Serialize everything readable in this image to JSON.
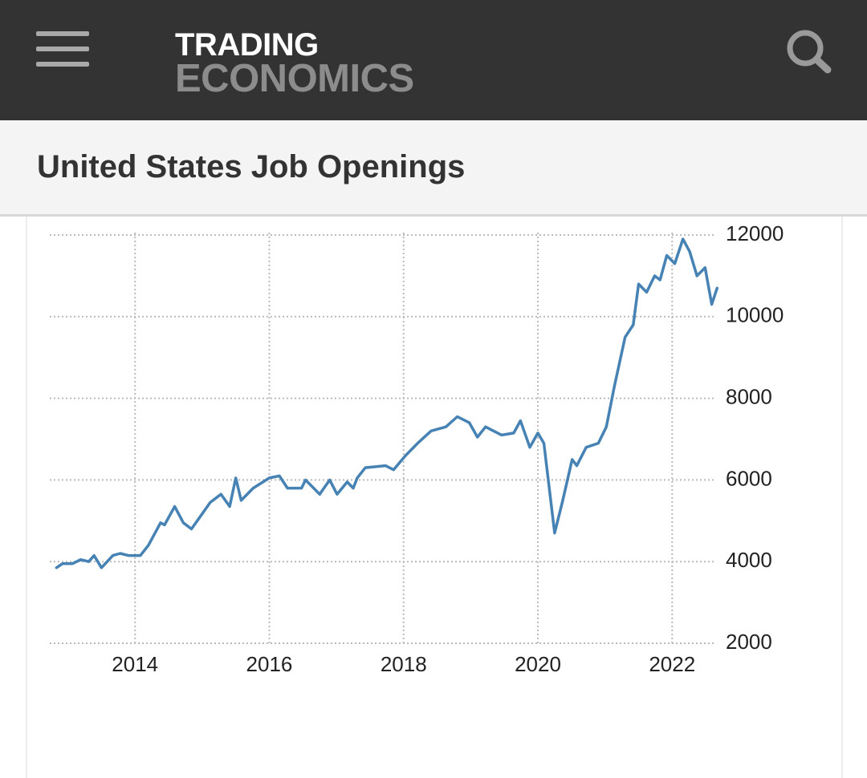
{
  "header": {
    "logo_top": "TRADING",
    "logo_bottom": "ECONOMICS"
  },
  "page": {
    "title": "United States Job Openings"
  },
  "chart_data": {
    "type": "line",
    "color": "#4682b4",
    "grid": true,
    "x": [
      2012.83,
      2012.92,
      2013.07,
      2013.19,
      2013.31,
      2013.39,
      2013.5,
      2013.67,
      2013.78,
      2013.9,
      2014.08,
      2014.2,
      2014.38,
      2014.44,
      2014.59,
      2014.72,
      2014.84,
      2015.12,
      2015.28,
      2015.41,
      2015.5,
      2015.58,
      2015.76,
      2016.0,
      2016.15,
      2016.27,
      2016.48,
      2016.54,
      2016.75,
      2016.9,
      2017.01,
      2017.16,
      2017.25,
      2017.31,
      2017.43,
      2017.73,
      2017.85,
      2018.03,
      2018.21,
      2018.41,
      2018.63,
      2018.8,
      2018.98,
      2019.1,
      2019.22,
      2019.46,
      2019.64,
      2019.74,
      2019.88,
      2020.0,
      2020.09,
      2020.25,
      2020.37,
      2020.51,
      2020.58,
      2020.72,
      2020.9,
      2021.02,
      2021.14,
      2021.3,
      2021.42,
      2021.5,
      2021.62,
      2021.74,
      2021.82,
      2021.92,
      2022.04,
      2022.16,
      2022.26,
      2022.37,
      2022.49,
      2022.59,
      2022.67
    ],
    "values": [
      3850,
      3950,
      3950,
      4050,
      4000,
      4150,
      3850,
      4150,
      4200,
      4150,
      4150,
      4400,
      4950,
      4900,
      5350,
      4950,
      4800,
      5450,
      5650,
      5350,
      6050,
      5500,
      5800,
      6050,
      6100,
      5800,
      5800,
      6000,
      5650,
      6000,
      5650,
      5950,
      5800,
      6050,
      6300,
      6350,
      6250,
      6600,
      6900,
      7200,
      7300,
      7550,
      7400,
      7050,
      7300,
      7100,
      7150,
      7450,
      6800,
      7150,
      6900,
      4700,
      5500,
      6500,
      6350,
      6800,
      6900,
      7300,
      8300,
      9500,
      9800,
      10800,
      10600,
      11000,
      10900,
      11500,
      11300,
      11900,
      11600,
      11000,
      11200,
      10300,
      10700
    ],
    "xlim": [
      2012.73,
      2022.75
    ],
    "xticks": [
      2014,
      2016,
      2018,
      2020,
      2022
    ],
    "ylim": [
      2000,
      12000
    ],
    "yticks": [
      2000,
      4000,
      6000,
      8000,
      10000,
      12000
    ]
  }
}
